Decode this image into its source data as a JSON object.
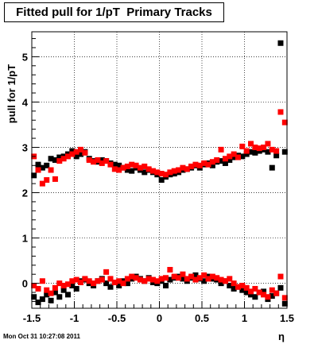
{
  "title": "Fitted pull for 1/pT  Primary Tracks",
  "timestamp": "Mon Oct 31 10:27:08 2011",
  "colors": {
    "series1": "#000000",
    "series2": "#ff0000",
    "frame": "#000000"
  },
  "chart_data": {
    "type": "scatter",
    "title": "Fitted pull for 1/pT  Primary Tracks",
    "xlabel": "η",
    "ylabel": "pull for 1/pT",
    "xlim": [
      -1.5,
      1.5
    ],
    "ylim": [
      -0.55,
      5.55
    ],
    "grid": true,
    "x_ticks": [
      -1.5,
      -1,
      -0.5,
      0,
      0.5,
      1,
      1.5
    ],
    "x_tick_labels": [
      "-1.5",
      "-1",
      "-0.5",
      "0",
      "0.5",
      "1",
      "1.5"
    ],
    "y_ticks": [
      0,
      1,
      2,
      3,
      4,
      5
    ],
    "y_tick_labels": [
      "0",
      "1",
      "2",
      "3",
      "4",
      "5"
    ],
    "series": [
      {
        "color": "#000000",
        "x": [
          -1.475,
          -1.425,
          -1.375,
          -1.325,
          -1.275,
          -1.225,
          -1.175,
          -1.125,
          -1.075,
          -1.025,
          -0.975,
          -0.925,
          -0.875,
          -0.825,
          -0.775,
          -0.725,
          -0.675,
          -0.625,
          -0.575,
          -0.525,
          -0.475,
          -0.425,
          -0.375,
          -0.325,
          -0.275,
          -0.225,
          -0.175,
          -0.125,
          -0.075,
          -0.025,
          0.025,
          0.075,
          0.125,
          0.175,
          0.225,
          0.275,
          0.325,
          0.375,
          0.425,
          0.475,
          0.525,
          0.575,
          0.625,
          0.675,
          0.725,
          0.775,
          0.825,
          0.875,
          0.925,
          0.975,
          1.025,
          1.075,
          1.125,
          1.175,
          1.225,
          1.275,
          1.325,
          1.375,
          1.425,
          1.475
        ],
        "y": [
          2.38,
          2.62,
          2.55,
          2.6,
          2.75,
          2.72,
          2.78,
          2.8,
          2.85,
          2.92,
          2.8,
          2.85,
          2.9,
          2.75,
          2.7,
          2.68,
          2.72,
          2.7,
          2.65,
          2.62,
          2.6,
          2.55,
          2.5,
          2.48,
          2.55,
          2.5,
          2.45,
          2.5,
          2.45,
          2.4,
          2.28,
          2.35,
          2.4,
          2.42,
          2.45,
          2.5,
          2.52,
          2.55,
          2.6,
          2.55,
          2.62,
          2.65,
          2.6,
          2.68,
          2.7,
          2.65,
          2.72,
          2.78,
          2.82,
          2.8,
          2.85,
          2.9,
          2.88,
          2.92,
          2.95,
          2.9,
          2.55,
          2.82,
          5.3,
          2.9
        ]
      },
      {
        "color": "#ff0000",
        "x": [
          -1.475,
          -1.425,
          -1.375,
          -1.325,
          -1.275,
          -1.225,
          -1.175,
          -1.125,
          -1.075,
          -1.025,
          -0.975,
          -0.925,
          -0.875,
          -0.825,
          -0.775,
          -0.725,
          -0.675,
          -0.625,
          -0.575,
          -0.525,
          -0.475,
          -0.425,
          -0.375,
          -0.325,
          -0.275,
          -0.225,
          -0.175,
          -0.125,
          -0.075,
          -0.025,
          0.025,
          0.075,
          0.125,
          0.175,
          0.225,
          0.275,
          0.325,
          0.375,
          0.425,
          0.475,
          0.525,
          0.575,
          0.625,
          0.675,
          0.725,
          0.775,
          0.825,
          0.875,
          0.925,
          0.975,
          1.025,
          1.075,
          1.125,
          1.175,
          1.225,
          1.275,
          1.325,
          1.375,
          1.425,
          1.475
        ],
        "y": [
          2.8,
          2.5,
          2.2,
          2.28,
          2.5,
          2.3,
          2.7,
          2.75,
          2.8,
          2.85,
          2.9,
          2.95,
          2.88,
          2.72,
          2.68,
          2.72,
          2.65,
          2.7,
          2.62,
          2.52,
          2.5,
          2.55,
          2.58,
          2.62,
          2.6,
          2.55,
          2.58,
          2.52,
          2.48,
          2.45,
          2.42,
          2.4,
          2.45,
          2.48,
          2.5,
          2.55,
          2.52,
          2.58,
          2.62,
          2.6,
          2.65,
          2.62,
          2.68,
          2.72,
          2.95,
          2.75,
          2.8,
          2.85,
          2.78,
          3.02,
          2.92,
          3.08,
          3.0,
          2.98,
          3.0,
          3.08,
          2.95,
          2.92,
          3.78,
          3.55
        ]
      },
      {
        "color": "#000000",
        "x": [
          -1.475,
          -1.425,
          -1.375,
          -1.325,
          -1.275,
          -1.225,
          -1.175,
          -1.125,
          -1.075,
          -1.025,
          -0.975,
          -0.925,
          -0.875,
          -0.825,
          -0.775,
          -0.725,
          -0.675,
          -0.625,
          -0.575,
          -0.525,
          -0.475,
          -0.425,
          -0.375,
          -0.325,
          -0.275,
          -0.225,
          -0.175,
          -0.125,
          -0.075,
          -0.025,
          0.025,
          0.075,
          0.125,
          0.175,
          0.225,
          0.275,
          0.325,
          0.375,
          0.425,
          0.475,
          0.525,
          0.575,
          0.625,
          0.675,
          0.725,
          0.775,
          0.825,
          0.875,
          0.925,
          0.975,
          1.025,
          1.075,
          1.125,
          1.175,
          1.225,
          1.275,
          1.325,
          1.375,
          1.425,
          1.475
        ],
        "y": [
          -0.3,
          -0.42,
          -0.35,
          -0.25,
          -0.38,
          -0.2,
          -0.3,
          -0.15,
          -0.25,
          -0.05,
          -0.12,
          0.05,
          0.08,
          0.0,
          -0.05,
          0.05,
          0.1,
          0.0,
          -0.08,
          0.02,
          -0.05,
          0.05,
          0.0,
          0.1,
          0.15,
          0.1,
          0.05,
          0.12,
          0.02,
          0.0,
          0.05,
          -0.05,
          0.08,
          0.12,
          0.15,
          0.1,
          0.05,
          0.12,
          0.18,
          0.1,
          0.05,
          0.15,
          0.1,
          0.08,
          0.0,
          0.05,
          -0.05,
          -0.12,
          -0.08,
          -0.15,
          -0.2,
          -0.25,
          -0.3,
          -0.2,
          -0.18,
          -0.35,
          -0.28,
          -0.22,
          -0.1,
          -0.45
        ]
      },
      {
        "color": "#ff0000",
        "x": [
          -1.475,
          -1.425,
          -1.375,
          -1.325,
          -1.275,
          -1.225,
          -1.175,
          -1.125,
          -1.075,
          -1.025,
          -0.975,
          -0.925,
          -0.875,
          -0.825,
          -0.775,
          -0.725,
          -0.675,
          -0.625,
          -0.575,
          -0.525,
          -0.475,
          -0.425,
          -0.375,
          -0.325,
          -0.275,
          -0.225,
          -0.175,
          -0.125,
          -0.075,
          -0.025,
          0.025,
          0.075,
          0.125,
          0.175,
          0.225,
          0.275,
          0.325,
          0.375,
          0.425,
          0.475,
          0.525,
          0.575,
          0.625,
          0.675,
          0.725,
          0.775,
          0.825,
          0.875,
          0.925,
          0.975,
          1.025,
          1.075,
          1.125,
          1.175,
          1.225,
          1.275,
          1.325,
          1.375,
          1.425,
          1.475
        ],
        "y": [
          -0.05,
          -0.12,
          0.05,
          -0.15,
          -0.22,
          -0.1,
          0.0,
          -0.05,
          -0.02,
          0.05,
          0.08,
          0.02,
          0.1,
          0.05,
          0.0,
          0.05,
          0.08,
          0.25,
          0.1,
          0.02,
          0.05,
          0.0,
          0.1,
          0.15,
          0.12,
          0.08,
          0.05,
          0.1,
          0.08,
          0.05,
          0.1,
          0.12,
          0.3,
          0.15,
          0.12,
          0.2,
          0.1,
          0.15,
          0.08,
          0.12,
          0.18,
          0.1,
          0.15,
          0.12,
          0.08,
          0.05,
          0.1,
          0.0,
          -0.08,
          -0.05,
          -0.1,
          -0.18,
          -0.12,
          -0.2,
          -0.25,
          -0.3,
          -0.15,
          -0.22,
          0.15,
          -0.32
        ]
      }
    ]
  }
}
